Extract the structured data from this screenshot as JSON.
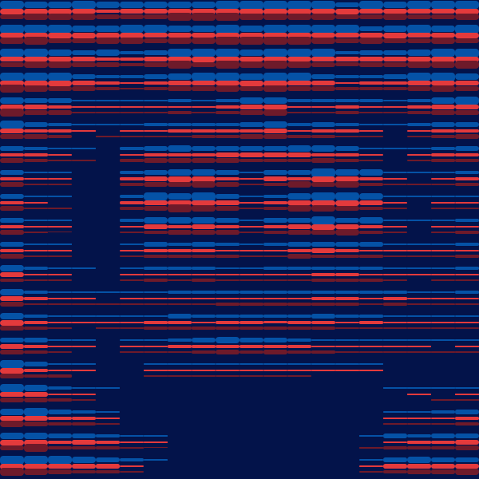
{
  "palette": {
    "background": "#03134a",
    "blue": "#0552a6",
    "red": "#e43a3c",
    "dark_red": "#6e1a2a"
  },
  "intensity_map": [
    [
      0.9,
      0.9,
      0.9,
      0.9,
      0.8,
      0.8,
      0.8,
      0.9,
      0.9,
      1,
      1,
      1,
      1,
      0.9,
      0.8,
      0.8,
      0.8,
      0.9,
      0.9,
      0.9
    ],
    [
      0.9,
      0.9,
      0.9,
      0.9,
      0.8,
      0.8,
      0.8,
      0.9,
      0.9,
      1,
      1,
      1,
      1,
      0.9,
      0.8,
      0.8,
      0.8,
      0.9,
      0.9,
      0.9
    ],
    [
      0.9,
      0.9,
      0.9,
      0.8,
      0.7,
      0.6,
      0.7,
      0.9,
      0.9,
      1,
      1,
      1,
      0.9,
      0.8,
      0.6,
      0.6,
      0.7,
      0.8,
      0.9,
      0.9
    ],
    [
      0.9,
      0.9,
      0.8,
      0.7,
      0.5,
      0.4,
      0.6,
      0.8,
      0.8,
      0.9,
      0.8,
      0.9,
      0.8,
      0.7,
      0.5,
      0.5,
      0.6,
      0.8,
      0.9,
      0.9
    ],
    [
      0.9,
      0.8,
      0.6,
      0.3,
      0.2,
      0.3,
      0.4,
      0.4,
      0.4,
      0.5,
      0.7,
      0.8,
      0.4,
      0.4,
      0.5,
      0.4,
      0.3,
      0.5,
      0.7,
      0.8
    ],
    [
      0.8,
      0.7,
      0.5,
      0.2,
      0.2,
      0.3,
      0.4,
      0.5,
      0.5,
      0.6,
      0.7,
      0.7,
      0.5,
      0.5,
      0.4,
      0.3,
      0.2,
      0.4,
      0.6,
      0.7
    ],
    [
      0.7,
      0.5,
      0.3,
      0.2,
      0.1,
      0.4,
      0.6,
      0.7,
      0.7,
      0.7,
      0.7,
      0.7,
      0.7,
      0.7,
      0.6,
      0.4,
      0.2,
      0.3,
      0.5,
      0.6
    ],
    [
      0.6,
      0.4,
      0.3,
      0.1,
      0.1,
      0.5,
      0.8,
      0.9,
      0.9,
      0.7,
      0.4,
      0.6,
      0.8,
      0.9,
      0.9,
      0.7,
      0.3,
      0.2,
      0.4,
      0.5
    ],
    [
      0.6,
      0.3,
      0.2,
      0.1,
      0.1,
      0.5,
      0.8,
      0.9,
      0.9,
      0.6,
      0.3,
      0.5,
      0.8,
      0.9,
      0.9,
      0.7,
      0.3,
      0.2,
      0.3,
      0.4
    ],
    [
      0.6,
      0.3,
      0.2,
      0.1,
      0.1,
      0.4,
      0.7,
      0.8,
      0.8,
      0.6,
      0.3,
      0.5,
      0.7,
      0.8,
      0.8,
      0.6,
      0.3,
      0.2,
      0.3,
      0.4
    ],
    [
      0.6,
      0.3,
      0.2,
      0.1,
      0.1,
      0.3,
      0.5,
      0.6,
      0.6,
      0.5,
      0.3,
      0.4,
      0.6,
      0.7,
      0.6,
      0.5,
      0.3,
      0.2,
      0.3,
      0.4
    ],
    [
      0.7,
      0.4,
      0.3,
      0.2,
      0.1,
      0.3,
      0.4,
      0.4,
      0.4,
      0.4,
      0.3,
      0.4,
      0.4,
      0.5,
      0.5,
      0.4,
      0.3,
      0.2,
      0.3,
      0.4
    ],
    [
      0.8,
      0.5,
      0.3,
      0.2,
      0.2,
      0.3,
      0.4,
      0.4,
      0.4,
      0.4,
      0.4,
      0.4,
      0.4,
      0.5,
      0.5,
      0.4,
      0.4,
      0.3,
      0.3,
      0.4
    ],
    [
      0.8,
      0.5,
      0.3,
      0.2,
      0.2,
      0.3,
      0.4,
      0.5,
      0.5,
      0.5,
      0.5,
      0.5,
      0.5,
      0.5,
      0.4,
      0.4,
      0.3,
      0.3,
      0.3,
      0.3
    ],
    [
      0.8,
      0.6,
      0.3,
      0.2,
      0.1,
      0.2,
      0.3,
      0.4,
      0.6,
      0.7,
      0.7,
      0.6,
      0.5,
      0.4,
      0.3,
      0.3,
      0.2,
      0.2,
      0.2,
      0.2
    ],
    [
      0.8,
      0.6,
      0.4,
      0.2,
      0.1,
      0.1,
      0.2,
      0.2,
      0.3,
      0.3,
      0.3,
      0.3,
      0.3,
      0.2,
      0.2,
      0.2,
      0.1,
      0.1,
      0.1,
      0.1
    ],
    [
      0.9,
      0.7,
      0.5,
      0.3,
      0.2,
      0.1,
      0.1,
      0.1,
      0.1,
      0.1,
      0.1,
      0.1,
      0.1,
      0.1,
      0.1,
      0.1,
      0.2,
      0.2,
      0.2,
      0.2
    ],
    [
      0.9,
      0.8,
      0.6,
      0.5,
      0.3,
      0.1,
      0.1,
      0.1,
      0.1,
      0.1,
      0.1,
      0.1,
      0.1,
      0.1,
      0.1,
      0.1,
      0.2,
      0.3,
      0.4,
      0.5
    ],
    [
      0.9,
      0.9,
      0.7,
      0.6,
      0.5,
      0.3,
      0.2,
      0.1,
      0.1,
      0.1,
      0.1,
      0.1,
      0.1,
      0.1,
      0.1,
      0.2,
      0.5,
      0.6,
      0.7,
      0.7
    ],
    [
      0.9,
      0.9,
      0.8,
      0.7,
      0.6,
      0.4,
      0.2,
      0.1,
      0.1,
      0.1,
      0.1,
      0.1,
      0.1,
      0.1,
      0.1,
      0.3,
      0.6,
      0.7,
      0.8,
      0.8
    ]
  ]
}
